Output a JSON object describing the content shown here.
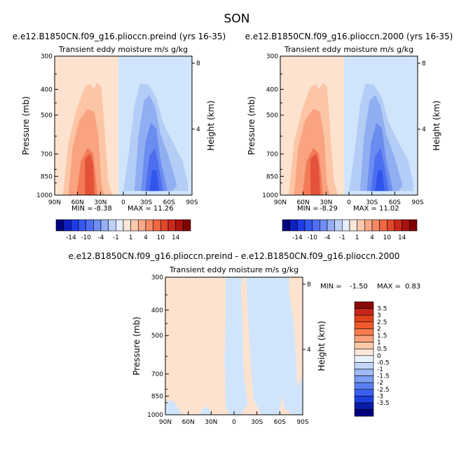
{
  "figure": {
    "title": "SON"
  },
  "colors": {
    "warm": [
      "#fde3cf",
      "#fcc6a6",
      "#f9a380",
      "#f27b56",
      "#e4523a"
    ],
    "cool": [
      "#d0e5fb",
      "#b3cdf6",
      "#90aef2",
      "#6b8df0",
      "#4d6ef0",
      "#2f55ec"
    ],
    "diff_pos": "#fde3cf",
    "diff_neg": "#d0e5fb"
  },
  "chart_data": [
    {
      "type": "heatmap",
      "title": "e.e12.B1850CN.f09_g16.plioccn.preind (yrs 16-35)",
      "subtitle": "Transient eddy moisture m/s g/kg",
      "ylabel": "Pressure (mb)",
      "y2label": "Height (km)",
      "x_ticks": [
        "90N",
        "60N",
        "30N",
        "0",
        "30S",
        "60S",
        "90S"
      ],
      "y_ticks": [
        "300",
        "400",
        "500",
        "700",
        "850",
        "1000"
      ],
      "y2_ticks": [
        "8",
        "4"
      ],
      "ylim": [
        1000,
        300
      ],
      "stats": {
        "min_label": "MIN =",
        "min": "-8.38",
        "max_label": "MAX =",
        "max": "11.26"
      }
    },
    {
      "type": "heatmap",
      "title": "e.e12.B1850CN.f09_g16.plioccn.2000 (yrs 16-35)",
      "subtitle": "Transient eddy moisture m/s g/kg",
      "ylabel": "Pressure (mb)",
      "y2label": "Height (km)",
      "x_ticks": [
        "90N",
        "60N",
        "30N",
        "0",
        "30S",
        "60S",
        "90S"
      ],
      "y_ticks": [
        "300",
        "400",
        "500",
        "700",
        "850",
        "1000"
      ],
      "y2_ticks": [
        "8",
        "4"
      ],
      "ylim": [
        1000,
        300
      ],
      "stats": {
        "min_label": "MIN =",
        "min": "-8.29",
        "max_label": "MAX =",
        "max": "11.02"
      }
    },
    {
      "type": "heatmap",
      "title": "e.e12.B1850CN.f09_g16.plioccn.preind - e.e12.B1850CN.f09_g16.plioccn.2000",
      "subtitle": "Transient eddy moisture m/s g/kg",
      "ylabel": "Pressure (mb)",
      "y2label": "Height (km)",
      "x_ticks": [
        "90N",
        "60N",
        "30N",
        "0",
        "30S",
        "60S",
        "90S"
      ],
      "y_ticks": [
        "300",
        "400",
        "500",
        "700",
        "850",
        "1000"
      ],
      "y2_ticks": [
        "8",
        "4"
      ],
      "ylim": [
        1000,
        300
      ],
      "stats": {
        "min_label": "MIN =",
        "min": "-1.50",
        "max_label": "MAX =",
        "max": "0.83"
      }
    }
  ],
  "colorbar_main": {
    "labels": [
      "-14",
      "-10",
      "-4",
      "-1",
      "1",
      "4",
      "10",
      "14"
    ],
    "colors": [
      "#00007f",
      "#0d1fbd",
      "#1f3be8",
      "#3557f0",
      "#506ff2",
      "#6f8df2",
      "#95aef4",
      "#bdd0f8",
      "#e4eefc",
      "#fde6d8",
      "#fcc8ad",
      "#f9a987",
      "#f58963",
      "#ee6844",
      "#e0472b",
      "#c9291b",
      "#a8120f",
      "#7f0000"
    ]
  },
  "colorbar_diff": {
    "labels": [
      "3.5",
      "3",
      "2.5",
      "2",
      "1.5",
      "1",
      "0.5",
      "0",
      "-0.5",
      "-1",
      "-1.5",
      "-2",
      "-2.5",
      "-3",
      "-3.5"
    ],
    "colors": [
      "#8a0a0a",
      "#c5261a",
      "#e0411f",
      "#f25a2c",
      "#f77c4f",
      "#fba37c",
      "#fdc9a9",
      "#fde6d8",
      "#e9f1fc",
      "#c3d6f8",
      "#9eb9f4",
      "#7c9ef3",
      "#5b80f2",
      "#3a5ff0",
      "#1e3fe0",
      "#0a1ca6",
      "#00007f"
    ]
  }
}
